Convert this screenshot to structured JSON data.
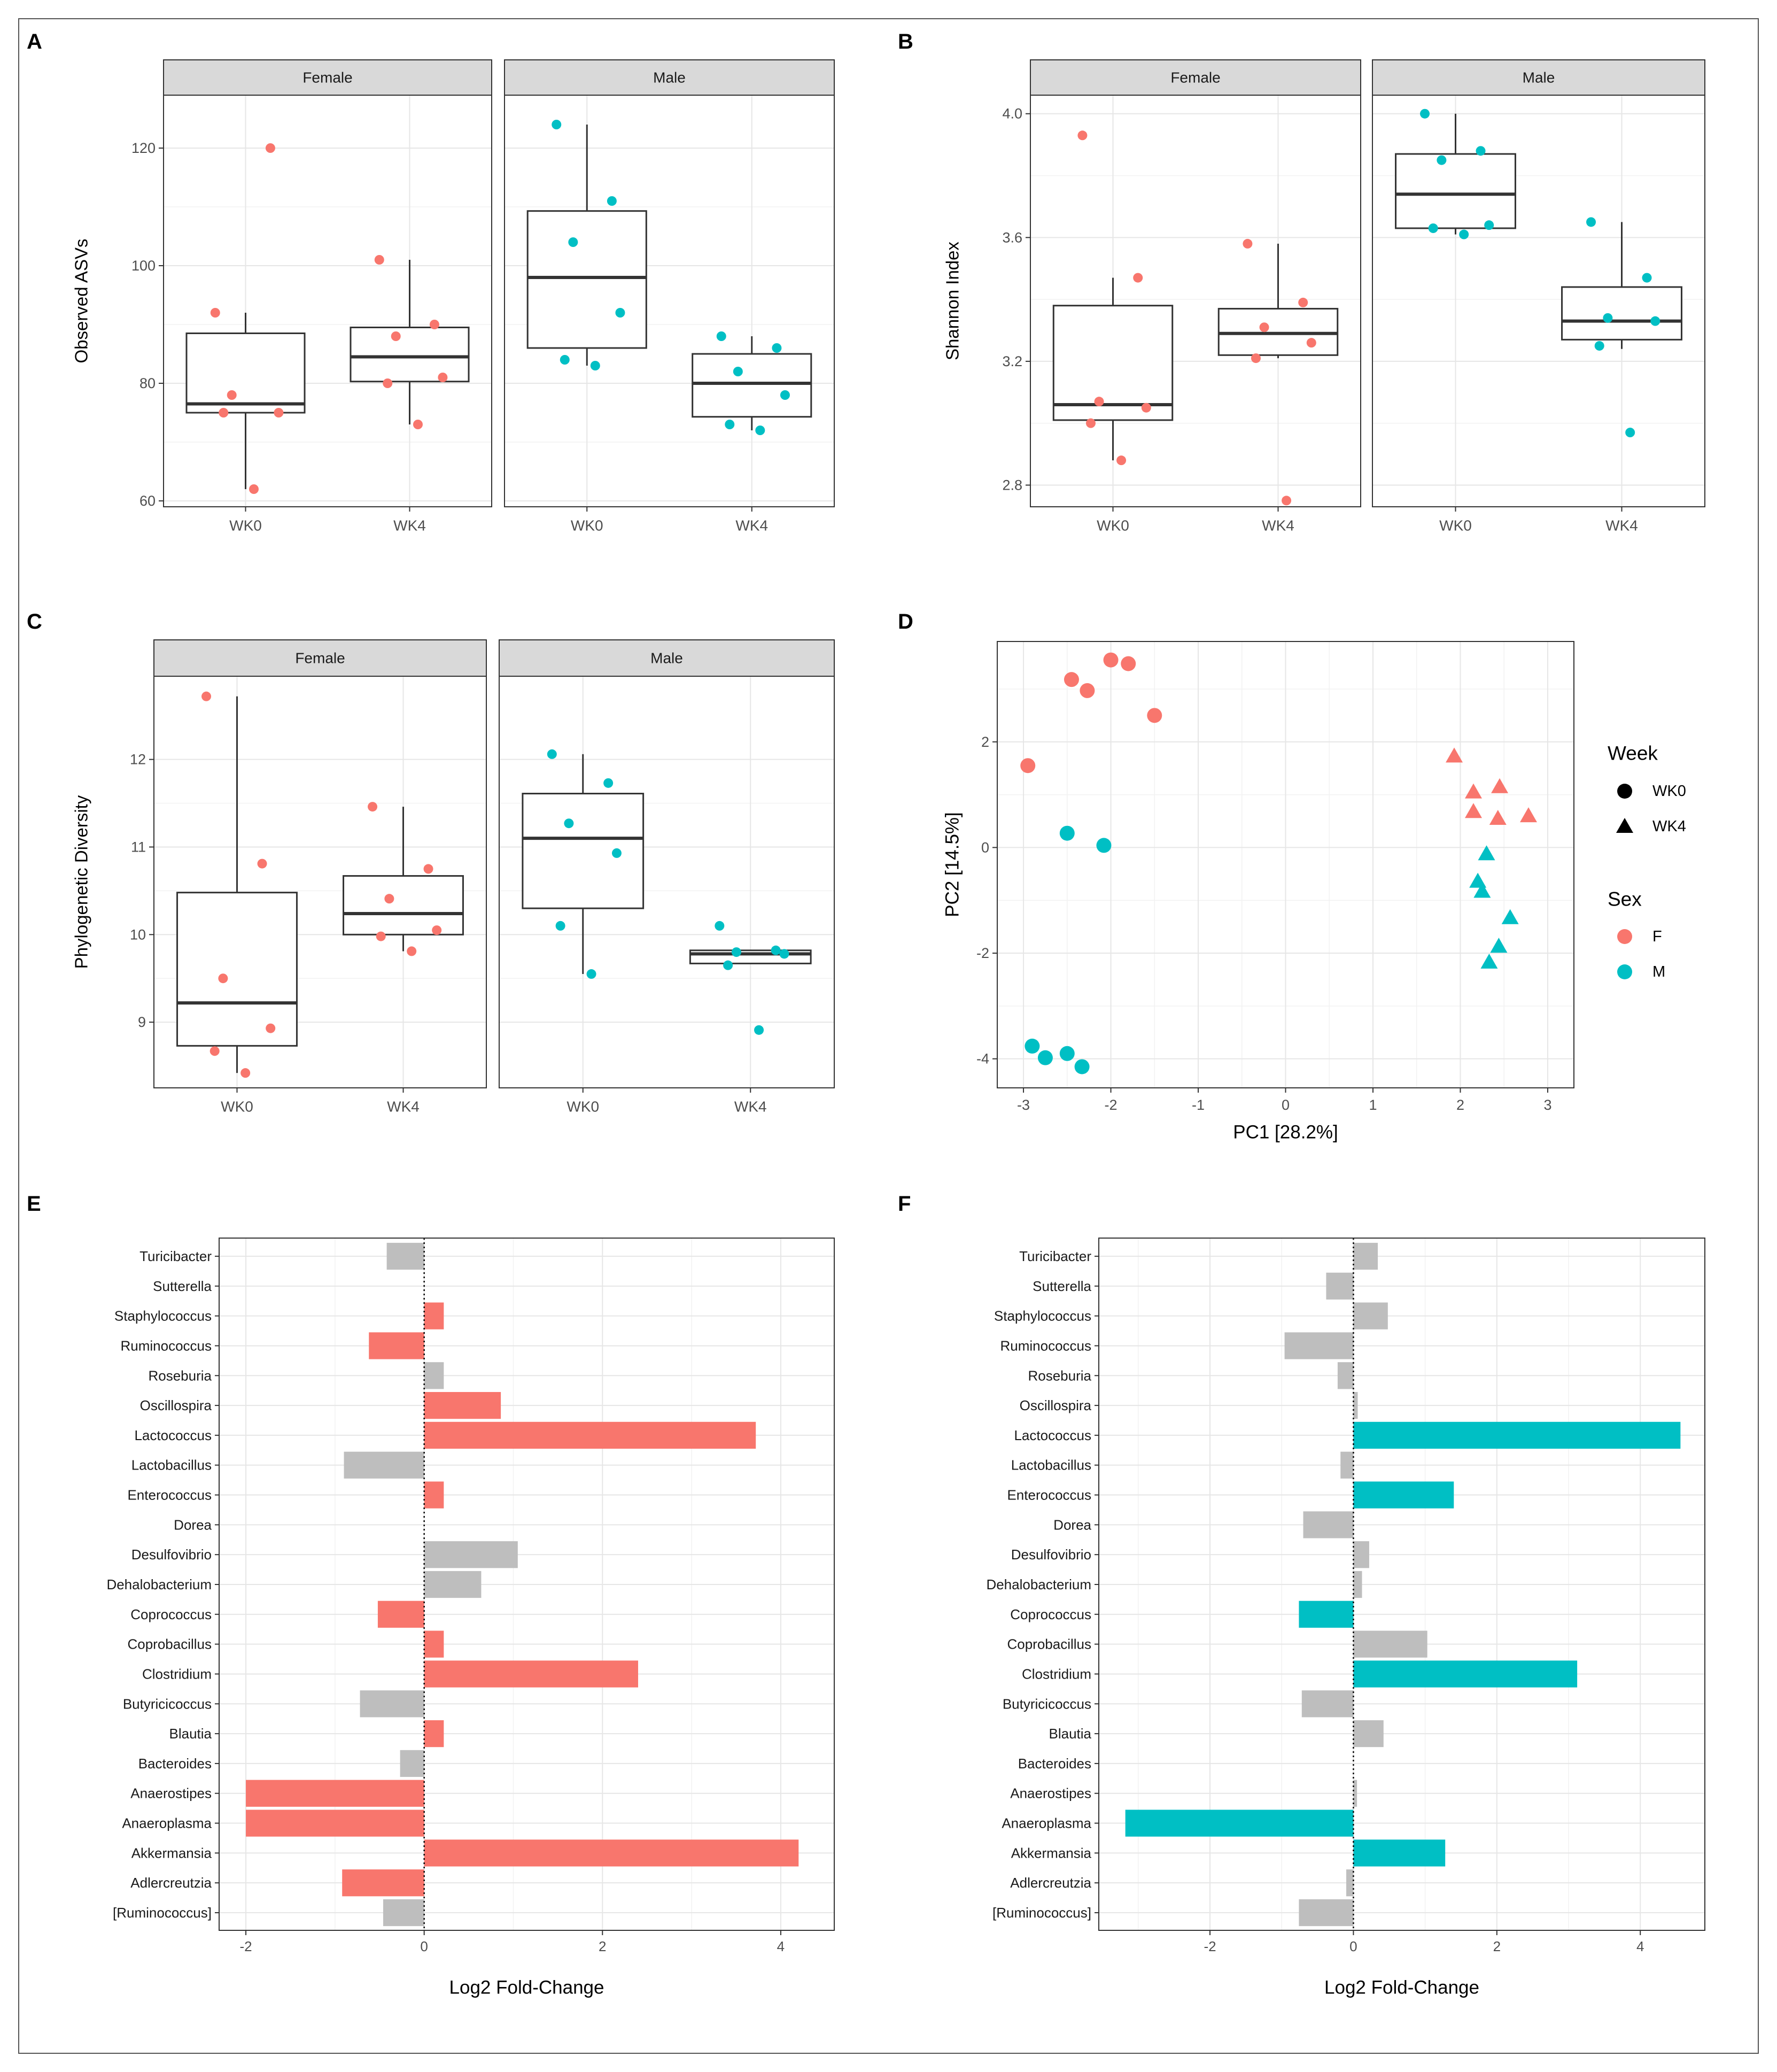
{
  "figure": {
    "point_colors": {
      "F": "#F8766D",
      "M": "#00BFC4"
    },
    "neutral_color": "#BEBEBE"
  },
  "chart_data": [
    {
      "panel": "A",
      "type": "boxplot",
      "ylabel": "Observed ASVs",
      "ylim": [
        59,
        129
      ],
      "yticks": [
        60,
        80,
        100,
        120
      ],
      "categories": [
        "WK0",
        "WK4"
      ],
      "facets": [
        {
          "label": "Female",
          "groups": [
            {
              "x": "WK0",
              "q1": 75,
              "median": 76.5,
              "q3": 88.5,
              "whisker_low": 62,
              "whisker_high": 92,
              "points": [
                92,
                120,
                78,
                75,
                75,
                62
              ]
            },
            {
              "x": "WK4",
              "q1": 80.3,
              "median": 84.5,
              "q3": 89.5,
              "whisker_low": 73,
              "whisker_high": 101,
              "points": [
                101,
                90,
                88,
                81,
                80,
                73
              ]
            }
          ]
        },
        {
          "label": "Male",
          "groups": [
            {
              "x": "WK0",
              "q1": 86,
              "median": 98,
              "q3": 109.3,
              "whisker_low": 83,
              "whisker_high": 124,
              "points": [
                124,
                111,
                104,
                92,
                84,
                83
              ]
            },
            {
              "x": "WK4",
              "q1": 74.3,
              "median": 80,
              "q3": 85,
              "whisker_low": 72,
              "whisker_high": 88,
              "points": [
                88,
                86,
                82,
                78,
                73,
                72
              ]
            }
          ]
        }
      ]
    },
    {
      "panel": "B",
      "type": "boxplot",
      "ylabel": "Shannon Index",
      "ylim": [
        2.73,
        4.06
      ],
      "yticks": [
        "2.8",
        "3.2",
        "3.6",
        "4.0"
      ],
      "categories": [
        "WK0",
        "WK4"
      ],
      "facets": [
        {
          "label": "Female",
          "groups": [
            {
              "x": "WK0",
              "q1": 3.01,
              "median": 3.06,
              "q3": 3.38,
              "whisker_low": 2.88,
              "whisker_high": 3.47,
              "points": [
                3.93,
                3.47,
                3.07,
                3.05,
                3.0,
                2.88
              ]
            },
            {
              "x": "WK4",
              "q1": 3.22,
              "median": 3.29,
              "q3": 3.37,
              "whisker_low": 3.21,
              "whisker_high": 3.58,
              "points": [
                3.58,
                3.39,
                3.31,
                3.26,
                3.21,
                2.75
              ]
            }
          ]
        },
        {
          "label": "Male",
          "groups": [
            {
              "x": "WK0",
              "q1": 3.63,
              "median": 3.74,
              "q3": 3.87,
              "whisker_low": 3.61,
              "whisker_high": 4.0,
              "points": [
                4.0,
                3.88,
                3.85,
                3.64,
                3.63,
                3.61
              ]
            },
            {
              "x": "WK4",
              "q1": 3.27,
              "median": 3.33,
              "q3": 3.44,
              "whisker_low": 3.24,
              "whisker_high": 3.65,
              "points": [
                3.65,
                3.47,
                3.34,
                3.33,
                3.25,
                2.97
              ]
            }
          ]
        }
      ]
    },
    {
      "panel": "C",
      "type": "boxplot",
      "ylabel": "Phylogenetic Diversity",
      "ylim": [
        8.25,
        12.95
      ],
      "yticks": [
        9,
        10,
        11,
        12
      ],
      "categories": [
        "WK0",
        "WK4"
      ],
      "facets": [
        {
          "label": "Female",
          "groups": [
            {
              "x": "WK0",
              "q1": 8.73,
              "median": 9.22,
              "q3": 10.48,
              "whisker_low": 8.42,
              "whisker_high": 12.72,
              "points": [
                12.72,
                10.81,
                9.5,
                8.93,
                8.67,
                8.42
              ]
            },
            {
              "x": "WK4",
              "q1": 10.0,
              "median": 10.24,
              "q3": 10.67,
              "whisker_low": 9.81,
              "whisker_high": 11.46,
              "points": [
                11.46,
                10.75,
                10.41,
                10.05,
                9.98,
                9.81
              ]
            }
          ]
        },
        {
          "label": "Male",
          "groups": [
            {
              "x": "WK0",
              "q1": 10.3,
              "median": 11.1,
              "q3": 11.61,
              "whisker_low": 9.55,
              "whisker_high": 12.06,
              "points": [
                12.06,
                11.73,
                11.27,
                10.93,
                10.1,
                9.55
              ]
            },
            {
              "x": "WK4",
              "q1": 9.67,
              "median": 9.78,
              "q3": 9.82,
              "whisker_low": 9.67,
              "whisker_high": 9.82,
              "points": [
                10.1,
                9.82,
                9.8,
                9.78,
                9.65,
                8.91
              ]
            }
          ]
        }
      ]
    },
    {
      "panel": "D",
      "type": "scatter",
      "xlabel": "PC1   [28.2%]",
      "ylabel": "PC2   [14.5%]",
      "xlim": [
        -3.3,
        3.3
      ],
      "ylim": [
        -4.55,
        3.9
      ],
      "xticks": [
        -3,
        -2,
        -1,
        0,
        1,
        2,
        3
      ],
      "yticks": [
        -4,
        -2,
        0,
        2
      ],
      "legend": {
        "shape_title": "Week",
        "shape_items": [
          "WK0",
          "WK4"
        ],
        "color_title": "Sex",
        "color_items": [
          "F",
          "M"
        ],
        "position": "right"
      },
      "points": [
        {
          "x": -2.0,
          "y": 3.55,
          "week": "WK0",
          "sex": "F"
        },
        {
          "x": -1.8,
          "y": 3.48,
          "week": "WK0",
          "sex": "F"
        },
        {
          "x": -2.45,
          "y": 3.18,
          "week": "WK0",
          "sex": "F"
        },
        {
          "x": -2.27,
          "y": 2.97,
          "week": "WK0",
          "sex": "F"
        },
        {
          "x": -1.5,
          "y": 2.5,
          "week": "WK0",
          "sex": "F"
        },
        {
          "x": -2.95,
          "y": 1.55,
          "week": "WK0",
          "sex": "F"
        },
        {
          "x": -2.5,
          "y": 0.27,
          "week": "WK0",
          "sex": "M"
        },
        {
          "x": -2.08,
          "y": 0.04,
          "week": "WK0",
          "sex": "M"
        },
        {
          "x": -2.9,
          "y": -3.76,
          "week": "WK0",
          "sex": "M"
        },
        {
          "x": -2.75,
          "y": -3.98,
          "week": "WK0",
          "sex": "M"
        },
        {
          "x": -2.5,
          "y": -3.9,
          "week": "WK0",
          "sex": "M"
        },
        {
          "x": -2.33,
          "y": -4.15,
          "week": "WK0",
          "sex": "M"
        },
        {
          "x": 1.93,
          "y": 1.73,
          "week": "WK4",
          "sex": "F"
        },
        {
          "x": 2.15,
          "y": 1.05,
          "week": "WK4",
          "sex": "F"
        },
        {
          "x": 2.45,
          "y": 1.15,
          "week": "WK4",
          "sex": "F"
        },
        {
          "x": 2.15,
          "y": 0.68,
          "week": "WK4",
          "sex": "F"
        },
        {
          "x": 2.43,
          "y": 0.55,
          "week": "WK4",
          "sex": "F"
        },
        {
          "x": 2.78,
          "y": 0.6,
          "week": "WK4",
          "sex": "F"
        },
        {
          "x": 2.3,
          "y": -0.12,
          "week": "WK4",
          "sex": "M"
        },
        {
          "x": 2.2,
          "y": -0.64,
          "week": "WK4",
          "sex": "M"
        },
        {
          "x": 2.25,
          "y": -0.83,
          "week": "WK4",
          "sex": "M"
        },
        {
          "x": 2.57,
          "y": -1.33,
          "week": "WK4",
          "sex": "M"
        },
        {
          "x": 2.44,
          "y": -1.87,
          "week": "WK4",
          "sex": "M"
        },
        {
          "x": 2.33,
          "y": -2.17,
          "week": "WK4",
          "sex": "M"
        }
      ]
    },
    {
      "panel": "E",
      "type": "bar",
      "orientation": "horizontal",
      "xlabel": "Log2 Fold-Change",
      "xlim": [
        -2.3,
        4.6
      ],
      "xticks": [
        -2,
        0,
        2,
        4
      ],
      "highlight_color": "#F8766D",
      "categories": [
        "Turicibacter",
        "Sutterella",
        "Staphylococcus",
        "Ruminococcus",
        "Roseburia",
        "Oscillospira",
        "Lactococcus",
        "Lactobacillus",
        "Enterococcus",
        "Dorea",
        "Desulfovibrio",
        "Dehalobacterium",
        "Coprococcus",
        "Coprobacillus",
        "Clostridium",
        "Butyricicoccus",
        "Blautia",
        "Bacteroides",
        "Anaerostipes",
        "Anaeroplasma",
        "Akkermansia",
        "Adlercreutzia",
        "[Ruminococcus]"
      ],
      "values": [
        -0.42,
        0,
        0.22,
        -0.62,
        0.22,
        0.86,
        3.72,
        -0.9,
        0.22,
        0,
        1.05,
        0.64,
        -0.52,
        0.22,
        2.4,
        -0.72,
        0.22,
        -0.27,
        -2.0,
        -2.0,
        4.2,
        -0.92,
        -0.46
      ],
      "significant": [
        false,
        false,
        true,
        true,
        false,
        true,
        true,
        false,
        true,
        false,
        false,
        false,
        true,
        true,
        true,
        false,
        true,
        false,
        true,
        true,
        true,
        true,
        false
      ]
    },
    {
      "panel": "F",
      "type": "bar",
      "orientation": "horizontal",
      "xlabel": "Log2 Fold-Change",
      "xlim": [
        -3.55,
        4.9
      ],
      "xticks": [
        -2,
        0,
        2,
        4
      ],
      "highlight_color": "#00BFC4",
      "categories": [
        "Turicibacter",
        "Sutterella",
        "Staphylococcus",
        "Ruminococcus",
        "Roseburia",
        "Oscillospira",
        "Lactococcus",
        "Lactobacillus",
        "Enterococcus",
        "Dorea",
        "Desulfovibrio",
        "Dehalobacterium",
        "Coprococcus",
        "Coprobacillus",
        "Clostridium",
        "Butyricicoccus",
        "Blautia",
        "Bacteroides",
        "Anaerostipes",
        "Anaeroplasma",
        "Akkermansia",
        "Adlercreutzia",
        "[Ruminococcus]"
      ],
      "values": [
        0.34,
        -0.38,
        0.48,
        -0.96,
        -0.22,
        0.06,
        4.56,
        -0.18,
        1.4,
        -0.7,
        0.22,
        0.12,
        -0.76,
        1.03,
        3.12,
        -0.72,
        0.42,
        0,
        0.05,
        -3.18,
        1.28,
        -0.1,
        -0.76
      ],
      "significant": [
        false,
        false,
        false,
        false,
        false,
        false,
        true,
        false,
        true,
        false,
        false,
        false,
        true,
        false,
        true,
        false,
        false,
        false,
        false,
        true,
        true,
        false,
        false
      ]
    }
  ]
}
